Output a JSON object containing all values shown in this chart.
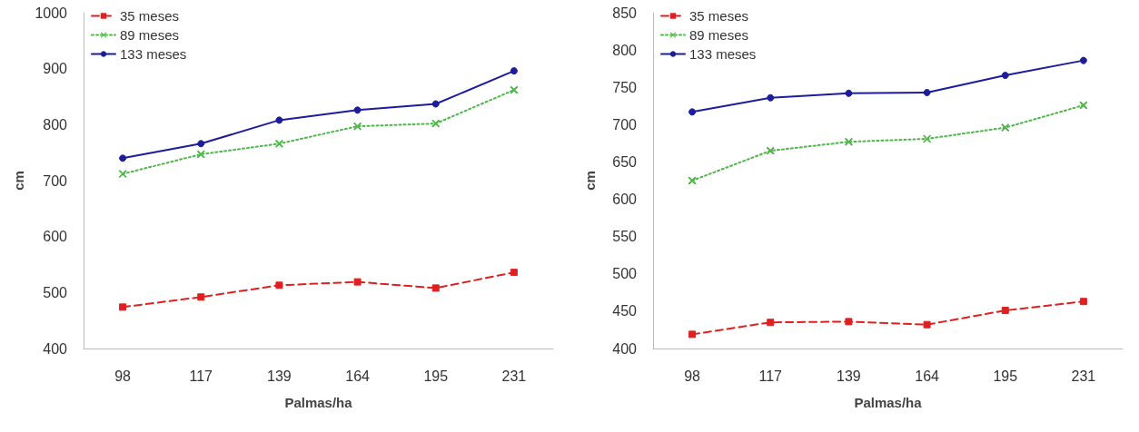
{
  "chart_data": [
    {
      "type": "line",
      "xlabel": "Palmas/ha",
      "ylabel": "cm",
      "categories": [
        "98",
        "117",
        "139",
        "164",
        "195",
        "231"
      ],
      "ylim": [
        400,
        1000
      ],
      "yticks": [
        400,
        500,
        600,
        700,
        800,
        900,
        1000
      ],
      "grid": false,
      "legend": "top left",
      "series": [
        {
          "name": "35 meses",
          "color": "#e02020",
          "marker": "square",
          "line_style": "dashed",
          "values": [
            474,
            492,
            513,
            519,
            508,
            536
          ]
        },
        {
          "name": "89 meses",
          "color": "#4cb848",
          "marker": "cross",
          "line_style": "dotted",
          "values": [
            712,
            747,
            766,
            797,
            802,
            862
          ]
        },
        {
          "name": "133 meses",
          "color": "#1c1c9c",
          "marker": "circle",
          "line_style": "solid",
          "values": [
            740,
            766,
            808,
            826,
            837,
            896
          ]
        }
      ]
    },
    {
      "type": "line",
      "xlabel": "Palmas/ha",
      "ylabel": "cm",
      "categories": [
        "98",
        "117",
        "139",
        "164",
        "195",
        "231"
      ],
      "ylim": [
        400,
        850
      ],
      "yticks": [
        400,
        450,
        500,
        550,
        600,
        650,
        700,
        750,
        800,
        850
      ],
      "grid": false,
      "legend": "top left",
      "series": [
        {
          "name": "35 meses",
          "color": "#e02020",
          "marker": "square",
          "line_style": "dashed",
          "values": [
            419,
            435,
            436,
            432,
            451,
            463
          ]
        },
        {
          "name": "89 meses",
          "color": "#4cb848",
          "marker": "cross",
          "line_style": "dotted",
          "values": [
            625,
            665,
            677,
            681,
            696,
            726
          ]
        },
        {
          "name": "133 meses",
          "color": "#1c1c9c",
          "marker": "circle",
          "line_style": "solid",
          "values": [
            717,
            736,
            742,
            743,
            766,
            786
          ]
        }
      ]
    }
  ]
}
